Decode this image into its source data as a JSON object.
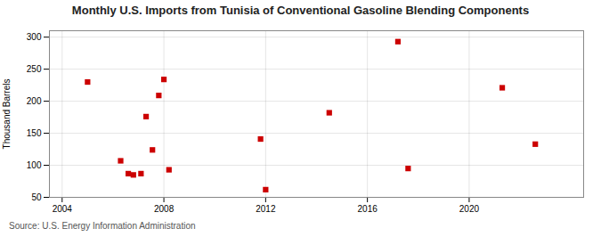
{
  "chart_data": {
    "type": "scatter",
    "title": "Monthly U.S. Imports from Tunisia of Conventional Gasoline Blending Components",
    "ylabel": "Thousand Barrels",
    "source": "Source: U.S. Energy Information Administration",
    "x": [
      2005.0,
      2006.3,
      2006.6,
      2006.8,
      2007.1,
      2007.3,
      2007.55,
      2007.8,
      2008.0,
      2008.2,
      2011.8,
      2012.0,
      2014.5,
      2017.2,
      2017.6,
      2021.3,
      2022.6
    ],
    "values": [
      230,
      107,
      87,
      85,
      87,
      176,
      124,
      209,
      234,
      93,
      141,
      62,
      182,
      293,
      95,
      221,
      133
    ],
    "color": "#CC0000",
    "marker": "square",
    "xlim": [
      2003.5,
      2024.5
    ],
    "xticks": [
      2004,
      2008,
      2012,
      2016,
      2020
    ],
    "ylim": [
      50,
      310
    ],
    "yticks": [
      50,
      100,
      150,
      200,
      250,
      300
    ],
    "grid": true
  }
}
